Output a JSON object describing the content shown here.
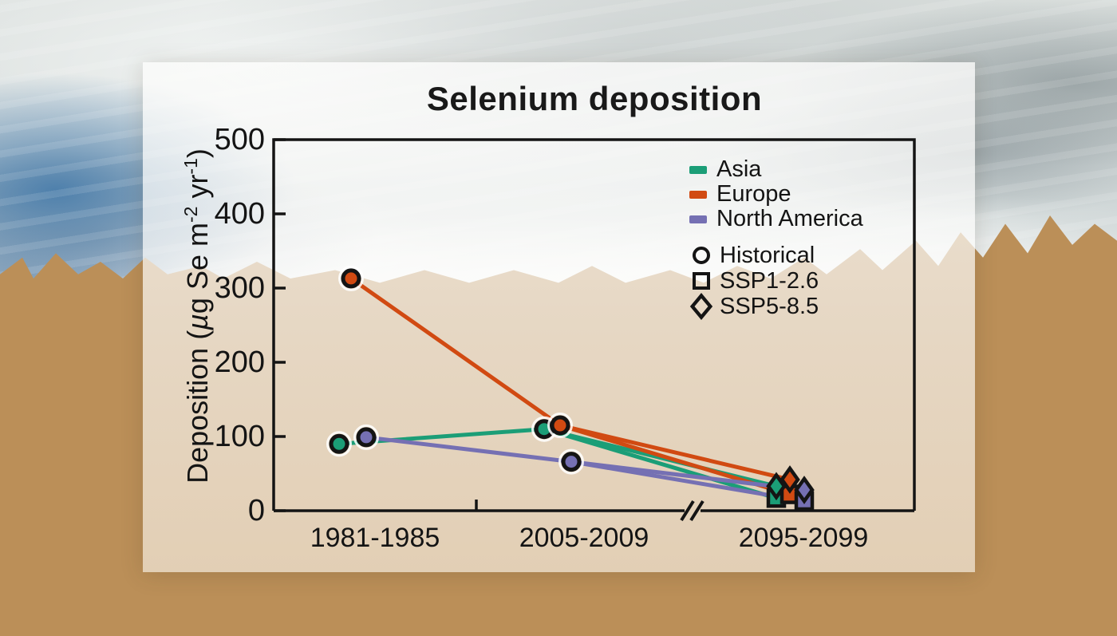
{
  "chart_data": {
    "type": "line",
    "title": "Selenium deposition",
    "ylabel": "Deposition (µg Se m⁻² yr⁻¹)",
    "ylabel_parts": [
      "Deposition (",
      "µ",
      "g Se m",
      "-2",
      " yr",
      "-1",
      ")"
    ],
    "xlabel": "",
    "categories": [
      "1981-1985",
      "2005-2009",
      "2095-2099"
    ],
    "yticks": [
      0,
      100,
      200,
      300,
      400,
      500
    ],
    "ylim": [
      0,
      500
    ],
    "grid": false,
    "legend_position": "top-right-inside",
    "axis_break_between": [
      "2005-2009",
      "2095-2099"
    ],
    "axis_color": "#141414",
    "series": [
      {
        "name": "Asia",
        "color": "#1b9e77",
        "historical_periods": [
          "1981-1985",
          "2005-2009"
        ],
        "historical": [
          90,
          110
        ],
        "future_period": "2095-2099",
        "ssp1_26": 17,
        "ssp5_85": 33
      },
      {
        "name": "Europe",
        "color": "#d14a12",
        "historical_periods": [
          "1981-1985",
          "2005-2009"
        ],
        "historical": [
          313,
          115
        ],
        "future_period": "2095-2099",
        "ssp1_26": 22,
        "ssp5_85": 42
      },
      {
        "name": "North America",
        "color": "#7570b3",
        "historical_periods": [
          "1981-1985",
          "2005-2009"
        ],
        "historical": [
          99,
          66
        ],
        "future_period": "2095-2099",
        "ssp1_26": 13,
        "ssp5_85": 28
      }
    ],
    "marker_legend": [
      {
        "label": "Historical",
        "marker": "circle"
      },
      {
        "label": "SSP1-2.6",
        "marker": "square"
      },
      {
        "label": "SSP5-8.5",
        "marker": "diamond"
      }
    ]
  }
}
